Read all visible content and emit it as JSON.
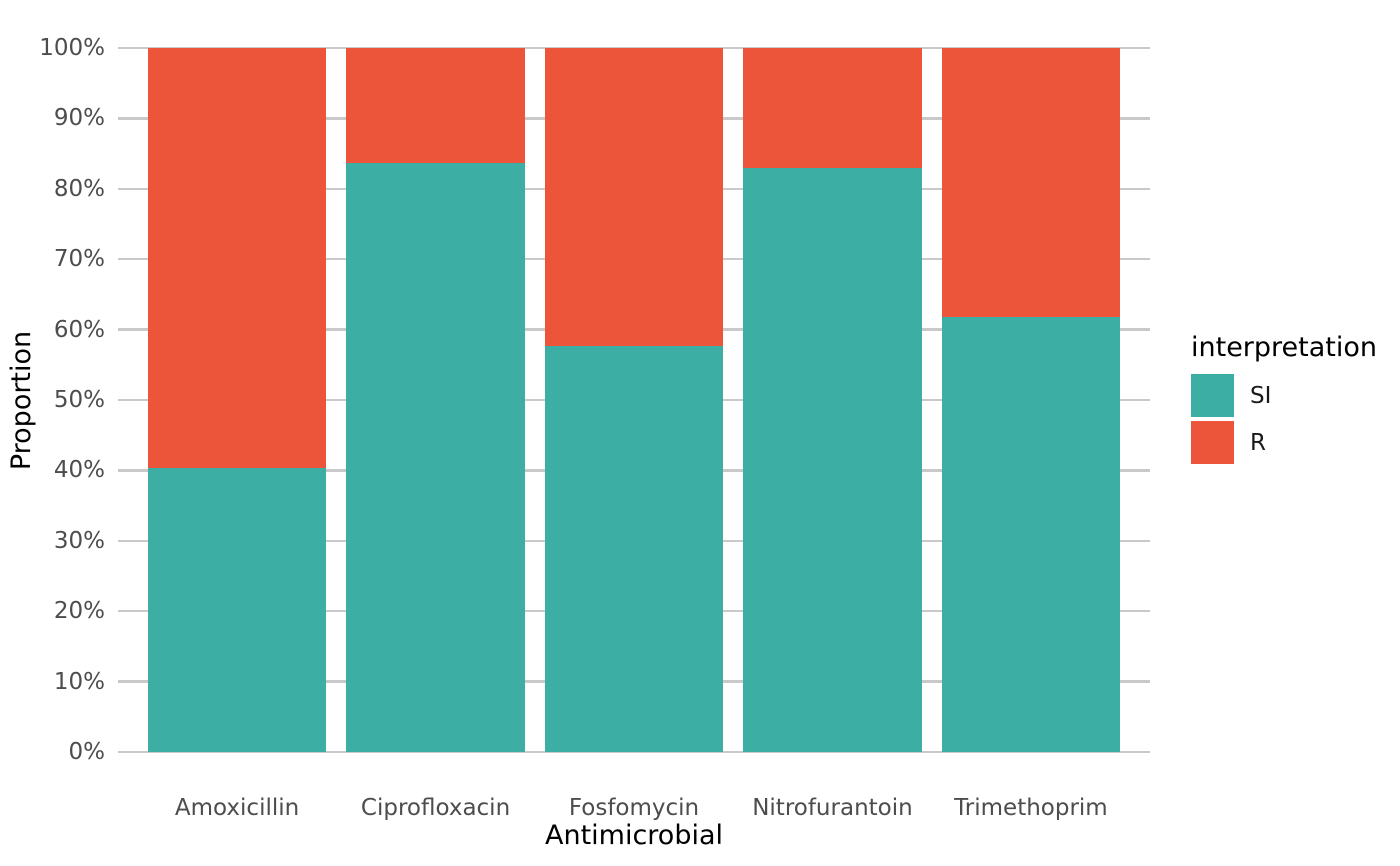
{
  "chart_data": {
    "type": "bar",
    "variant": "stacked-proportion",
    "title": "",
    "xlabel": "Antimicrobial",
    "ylabel": "Proportion",
    "categories": [
      "Amoxicillin",
      "Ciprofloxacin",
      "Fosfomycin",
      "Nitrofurantoin",
      "Trimethoprim"
    ],
    "series": [
      {
        "name": "SI",
        "color": "#3CAEA3",
        "values": [
          40.3,
          83.7,
          57.7,
          82.9,
          61.8
        ]
      },
      {
        "name": "R",
        "color": "#ED553B",
        "values": [
          59.7,
          16.3,
          42.3,
          17.1,
          38.2
        ]
      }
    ],
    "ylim": [
      0,
      100
    ],
    "yticks": [
      0,
      10,
      20,
      30,
      40,
      50,
      60,
      70,
      80,
      90,
      100
    ],
    "ytick_suffix": "%",
    "grid": "horizontal-major",
    "legend": {
      "title": "interpretation",
      "position": "right"
    }
  },
  "styles": {
    "background": "#FFFFFF",
    "gridline_color": "#C9C9C9",
    "tick_label_color": "#4D4D4D",
    "axis_title_color": "#000000",
    "si_color": "#3CAEA3",
    "r_color": "#ED553B"
  }
}
